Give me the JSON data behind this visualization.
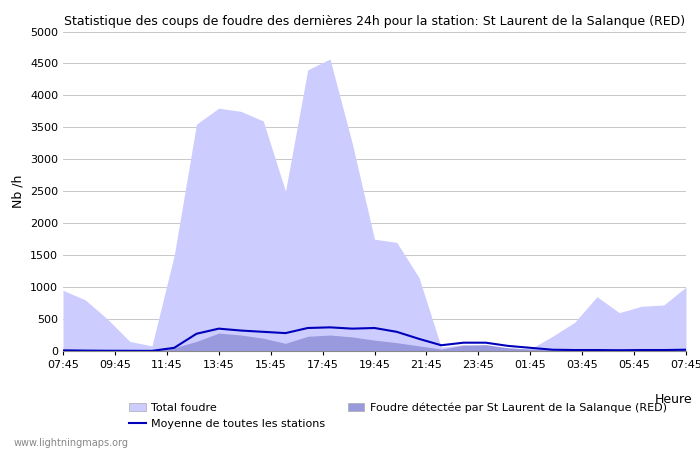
{
  "title": "Statistique des coups de foudre des dernières 24h pour la station: St Laurent de la Salanque (RED)",
  "xlabel": "Heure",
  "ylabel": "Nb /h",
  "ylim": [
    0,
    5000
  ],
  "yticks": [
    0,
    500,
    1000,
    1500,
    2000,
    2500,
    3000,
    3500,
    4000,
    4500,
    5000
  ],
  "x_labels": [
    "07:45",
    "09:45",
    "11:45",
    "13:45",
    "15:45",
    "17:45",
    "19:45",
    "21:45",
    "23:45",
    "01:45",
    "03:45",
    "05:45",
    "07:45"
  ],
  "background_color": "#ffffff",
  "plot_bg_color": "#ffffff",
  "grid_color": "#c8c8c8",
  "watermark": "www.lightningmaps.org",
  "total_foudre_color": "#ccccff",
  "local_foudre_color": "#9999dd",
  "moyenne_color": "#0000bb",
  "total_foudre": [
    950,
    800,
    500,
    150,
    80,
    1500,
    3550,
    3800,
    3750,
    3600,
    2500,
    4400,
    4570,
    3250,
    1750,
    1700,
    1150,
    60,
    100,
    75,
    50,
    30,
    230,
    450,
    850,
    600,
    700,
    720,
    1000
  ],
  "local_foudre": [
    40,
    25,
    15,
    8,
    5,
    50,
    150,
    280,
    250,
    200,
    120,
    230,
    250,
    220,
    170,
    130,
    80,
    30,
    90,
    100,
    50,
    30,
    15,
    10,
    15,
    15,
    15,
    20,
    20
  ],
  "moyenne": [
    8,
    6,
    4,
    3,
    2,
    50,
    270,
    350,
    320,
    300,
    280,
    360,
    370,
    350,
    360,
    300,
    190,
    90,
    130,
    130,
    80,
    50,
    20,
    15,
    15,
    12,
    15,
    15,
    20
  ],
  "n_points": 29,
  "legend_total": "Total foudre",
  "legend_moyenne": "Moyenne de toutes les stations",
  "legend_local": "Foudre détectée par St Laurent de la Salanque (RED)"
}
